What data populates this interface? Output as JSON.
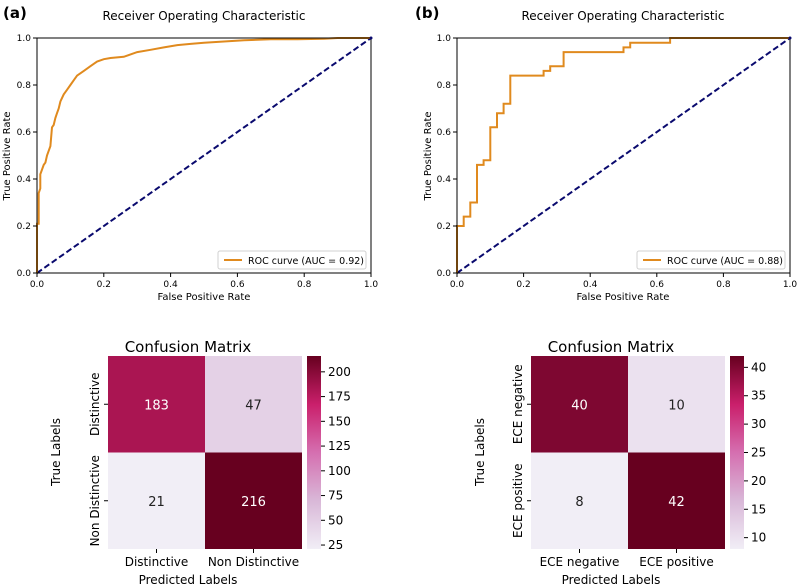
{
  "panels": [
    {
      "label": "(a)",
      "letter": "a"
    },
    {
      "label": "(b)",
      "letter": "b"
    }
  ],
  "chart_data": [
    {
      "type": "line",
      "panel": "a",
      "title": "Receiver Operating Characteristic",
      "xlabel": "False Positive Rate",
      "ylabel": "True Positive Rate",
      "xlim": [
        0,
        1
      ],
      "ylim": [
        0,
        1
      ],
      "xticks": [
        "0.0",
        "0.2",
        "0.4",
        "0.6",
        "0.8",
        "1.0"
      ],
      "yticks": [
        "0.0",
        "0.2",
        "0.4",
        "0.6",
        "0.8",
        "1.0"
      ],
      "legend": "ROC curve (AUC = 0.92)",
      "legend_position": "lower-right",
      "series": [
        {
          "name": "ROC curve (AUC = 0.92)",
          "color": "#e08a1e",
          "x": [
            0,
            0,
            0.005,
            0.005,
            0.01,
            0.01,
            0.015,
            0.02,
            0.025,
            0.03,
            0.035,
            0.04,
            0.045,
            0.05,
            0.055,
            0.06,
            0.065,
            0.07,
            0.08,
            0.09,
            0.1,
            0.11,
            0.12,
            0.14,
            0.16,
            0.17,
            0.18,
            0.2,
            0.22,
            0.26,
            0.28,
            0.3,
            0.34,
            0.38,
            0.42,
            0.46,
            0.5,
            0.56,
            0.62,
            0.7,
            0.78,
            0.86,
            0.9,
            1.0
          ],
          "y": [
            0,
            0.21,
            0.21,
            0.34,
            0.36,
            0.42,
            0.44,
            0.46,
            0.47,
            0.5,
            0.52,
            0.54,
            0.62,
            0.63,
            0.66,
            0.68,
            0.7,
            0.73,
            0.76,
            0.78,
            0.8,
            0.82,
            0.84,
            0.86,
            0.88,
            0.89,
            0.9,
            0.91,
            0.915,
            0.92,
            0.93,
            0.94,
            0.95,
            0.96,
            0.97,
            0.975,
            0.98,
            0.985,
            0.99,
            0.995,
            0.995,
            0.997,
            1.0,
            1.0
          ]
        },
        {
          "name": "chance",
          "color": "#0a0a6e",
          "style": "dashed",
          "x": [
            0,
            1
          ],
          "y": [
            0,
            1
          ]
        }
      ]
    },
    {
      "type": "line",
      "panel": "b",
      "title": "Receiver Operating Characteristic",
      "xlabel": "False Positive Rate",
      "ylabel": "True Positive Rate",
      "xlim": [
        0,
        1
      ],
      "ylim": [
        0,
        1
      ],
      "xticks": [
        "0.0",
        "0.2",
        "0.4",
        "0.6",
        "0.8",
        "1.0"
      ],
      "yticks": [
        "0.0",
        "0.2",
        "0.4",
        "0.6",
        "0.8",
        "1.0"
      ],
      "legend": "ROC curve (AUC = 0.88)",
      "legend_position": "lower-right",
      "series": [
        {
          "name": "ROC curve (AUC = 0.88)",
          "color": "#e08a1e",
          "x": [
            0,
            0,
            0.02,
            0.02,
            0.04,
            0.04,
            0.06,
            0.06,
            0.08,
            0.08,
            0.1,
            0.1,
            0.12,
            0.12,
            0.14,
            0.14,
            0.16,
            0.16,
            0.26,
            0.26,
            0.28,
            0.28,
            0.32,
            0.32,
            0.5,
            0.5,
            0.52,
            0.52,
            0.64,
            0.64,
            1.0
          ],
          "y": [
            0,
            0.2,
            0.2,
            0.24,
            0.24,
            0.3,
            0.3,
            0.46,
            0.46,
            0.48,
            0.48,
            0.62,
            0.62,
            0.68,
            0.68,
            0.72,
            0.72,
            0.84,
            0.84,
            0.86,
            0.86,
            0.88,
            0.88,
            0.94,
            0.94,
            0.96,
            0.96,
            0.98,
            0.98,
            1.0,
            1.0
          ]
        },
        {
          "name": "chance",
          "color": "#0a0a6e",
          "style": "dashed",
          "x": [
            0,
            1
          ],
          "y": [
            0,
            1
          ]
        }
      ]
    },
    {
      "type": "heatmap",
      "panel": "a",
      "title": "Confusion Matrix",
      "xlabel": "Predicted Labels",
      "ylabel": "True Labels",
      "x_categories": [
        "Distinctive",
        "Non Distinctive"
      ],
      "y_categories": [
        "Distinctive",
        "Non Distinctive"
      ],
      "values": [
        [
          183,
          47
        ],
        [
          21,
          216
        ]
      ],
      "colorbar_range": [
        21,
        216
      ],
      "colorbar_ticks": [
        "25",
        "50",
        "75",
        "100",
        "125",
        "150",
        "175",
        "200"
      ]
    },
    {
      "type": "heatmap",
      "panel": "b",
      "title": "Confusion Matrix",
      "xlabel": "Predicted Labels",
      "ylabel": "True Labels",
      "x_categories": [
        "ECE negative",
        "ECE positive"
      ],
      "y_categories": [
        "ECE negative",
        "ECE positive"
      ],
      "values": [
        [
          40,
          10
        ],
        [
          8,
          42
        ]
      ],
      "colorbar_range": [
        8,
        42
      ],
      "colorbar_ticks": [
        "10",
        "15",
        "20",
        "25",
        "30",
        "35",
        "40"
      ]
    }
  ]
}
